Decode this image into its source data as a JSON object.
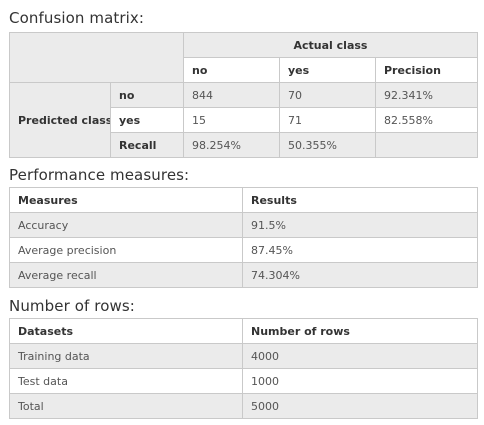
{
  "confusion": {
    "title": "Confusion matrix:",
    "actual_class": "Actual class",
    "predicted_class": "Predicted class",
    "col_headers": [
      "no",
      "yes",
      "Precision"
    ],
    "rows": [
      {
        "label": "no",
        "values": [
          "844",
          "70",
          "92.341%"
        ]
      },
      {
        "label": "yes",
        "values": [
          "15",
          "71",
          "82.558%"
        ]
      },
      {
        "label": "Recall",
        "values": [
          "98.254%",
          "50.355%",
          ""
        ]
      }
    ]
  },
  "performance": {
    "title": "Performance measures:",
    "headers": [
      "Measures",
      "Results"
    ],
    "rows": [
      {
        "measure": "Accuracy",
        "result": "91.5%"
      },
      {
        "measure": "Average precision",
        "result": "87.45%"
      },
      {
        "measure": "Average recall",
        "result": "74.304%"
      }
    ]
  },
  "rows_count": {
    "title": "Number of rows:",
    "headers": [
      "Datasets",
      "Number of rows"
    ],
    "rows": [
      {
        "dataset": "Training data",
        "count": "4000"
      },
      {
        "dataset": "Test data",
        "count": "1000"
      },
      {
        "dataset": "Total",
        "count": "5000"
      }
    ]
  }
}
